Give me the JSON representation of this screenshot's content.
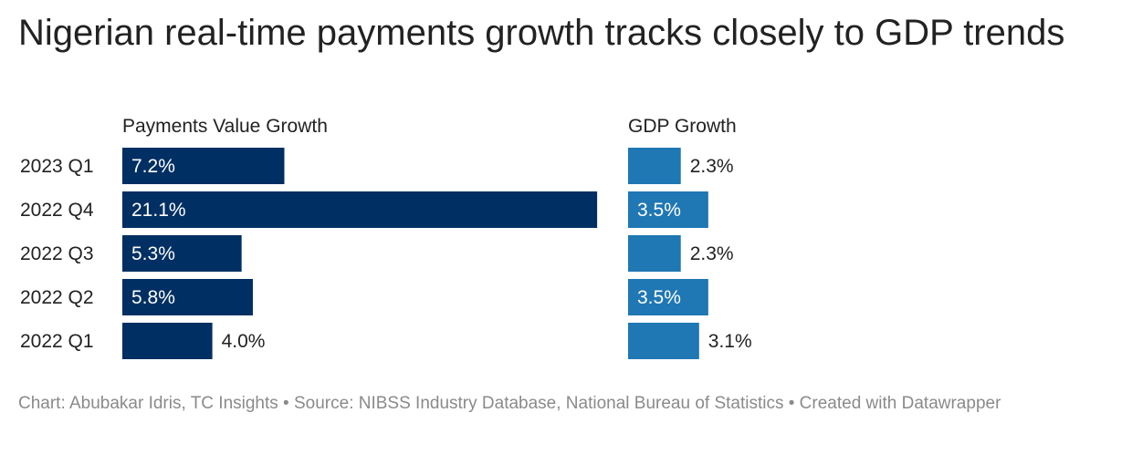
{
  "title": "Nigerian real-time payments growth tracks closely to GDP trends",
  "footer": "Chart: Abubakar Idris, TC Insights • Source: NIBSS Industry Database, National Bureau of Statistics • Created with Datawrapper",
  "colors": {
    "payments_bar": "#002f63",
    "gdp_bar": "#1f77b4",
    "label_inside": "#ffffff",
    "label_outside": "#222222",
    "title": "#222222",
    "footer": "#8a8a8a"
  },
  "chart_data": {
    "type": "bar",
    "orientation": "horizontal",
    "categories": [
      "2023 Q1",
      "2022 Q4",
      "2022 Q3",
      "2022 Q2",
      "2022 Q1"
    ],
    "series": [
      {
        "name": "Payments Value Growth",
        "values": [
          7.2,
          21.1,
          5.3,
          5.8,
          4.0
        ],
        "labels": [
          "7.2%",
          "21.1%",
          "5.3%",
          "5.8%",
          "4.0%"
        ]
      },
      {
        "name": "GDP Growth",
        "values": [
          2.3,
          3.5,
          2.3,
          3.5,
          3.1
        ],
        "labels": [
          "2.3%",
          "3.5%",
          "2.3%",
          "3.5%",
          "3.1%"
        ]
      }
    ],
    "grid": false,
    "legend": "none"
  }
}
